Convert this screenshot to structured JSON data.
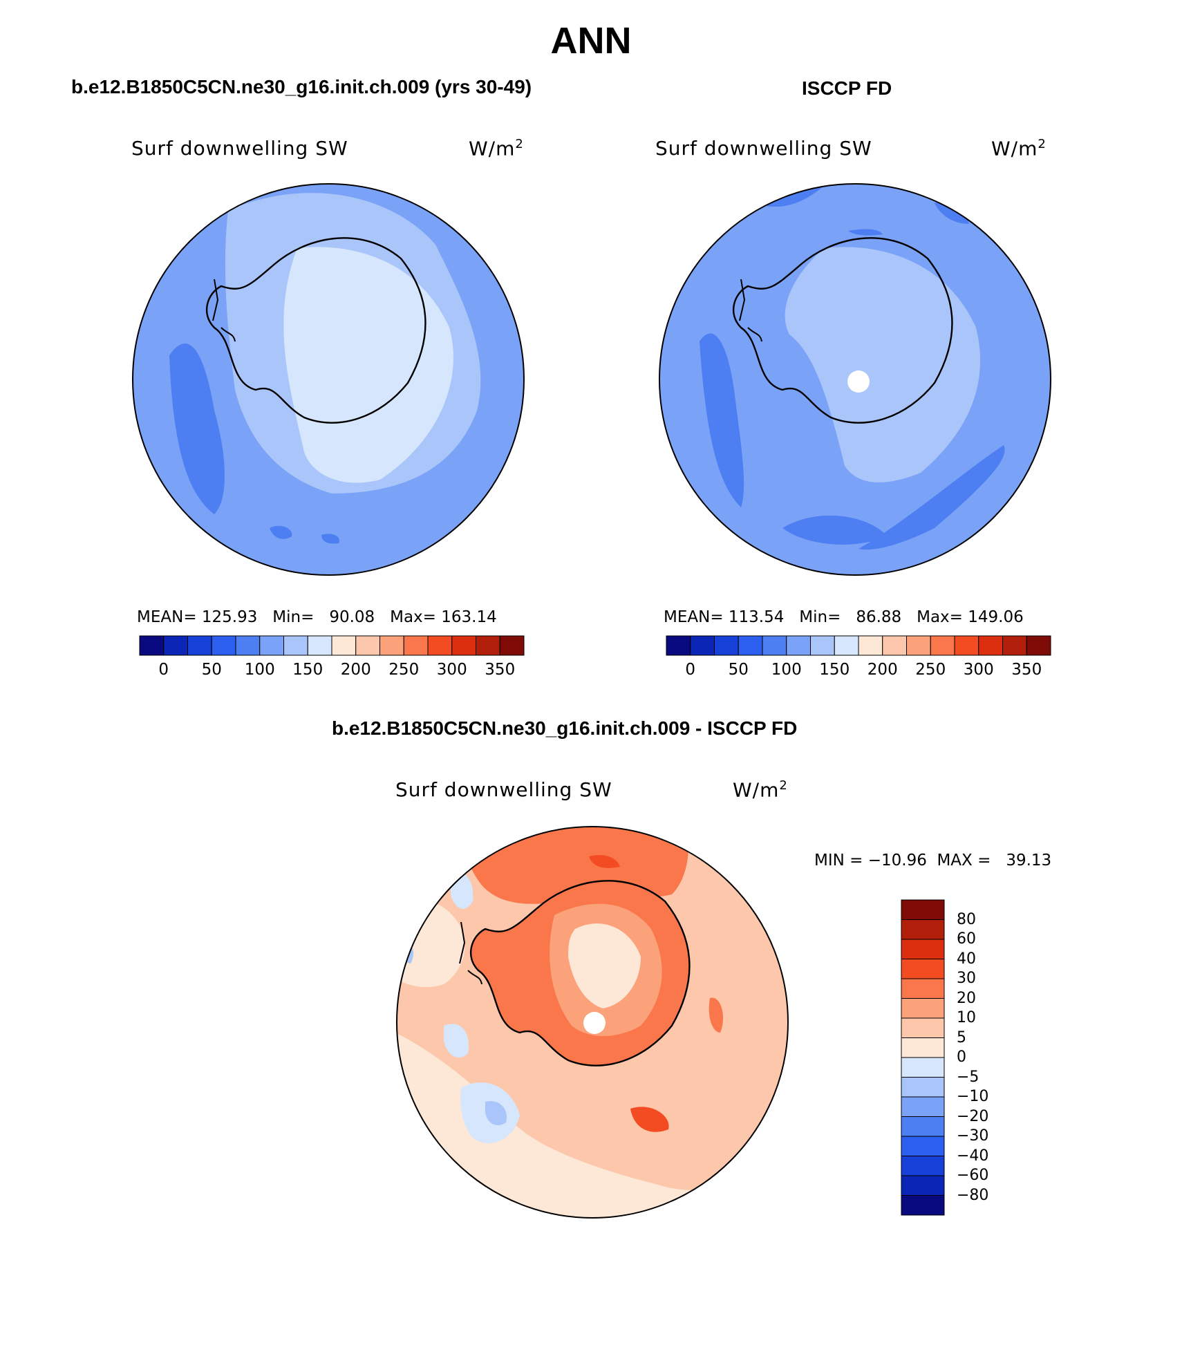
{
  "page_title": "ANN",
  "panels": [
    {
      "case": "b.e12.B1850C5CN.ne30_g16.init.ch.009 (yrs 30-49)",
      "variable": "Surf downwelling SW",
      "units": "W/m",
      "units_sup": "2",
      "stats": "MEAN= 125.93   Min=   90.08   Max= 163.14",
      "colorbar_ticks": [
        "0",
        "50",
        "100",
        "150",
        "200",
        "250",
        "300",
        "350"
      ]
    },
    {
      "case": "ISCCP FD",
      "variable": "Surf downwelling SW",
      "units": "W/m",
      "units_sup": "2",
      "stats": "MEAN= 113.54   Min=   86.88   Max= 149.06",
      "colorbar_ticks": [
        "0",
        "50",
        "100",
        "150",
        "200",
        "250",
        "300",
        "350"
      ]
    }
  ],
  "diff_panel": {
    "case": "b.e12.B1850C5CN.ne30_g16.init.ch.009 - ISCCP FD",
    "variable": "Surf downwelling SW",
    "units": "W/m",
    "units_sup": "2",
    "minmax": "MIN = −10.96  MAX =   39.13",
    "colorbar_labels": [
      "80",
      "60",
      "40",
      "30",
      "20",
      "10",
      "5",
      "0",
      "−5",
      "−10",
      "−20",
      "−30",
      "−40",
      "−60",
      "−80"
    ]
  },
  "colors": {
    "abs_scale": [
      "#0a0a80",
      "#0b26b6",
      "#1640d8",
      "#2c5ef0",
      "#4d7ef2",
      "#7aa2f6",
      "#a9c5fa",
      "#d6e7fd",
      "#fde7d6",
      "#fcc7ab",
      "#fba27b",
      "#f9774a",
      "#f44c22",
      "#dc2f10",
      "#b11f0a",
      "#7f0b06"
    ],
    "diff_scale": [
      "#7f0b06",
      "#b11f0a",
      "#dc2f10",
      "#f44c22",
      "#f9774a",
      "#fba27b",
      "#fcc7ab",
      "#fde7d6",
      "#d6e7fd",
      "#a9c5fa",
      "#7aa2f6",
      "#4d7ef2",
      "#2c5ef0",
      "#1640d8",
      "#0b26b6",
      "#0a0a80"
    ]
  }
}
